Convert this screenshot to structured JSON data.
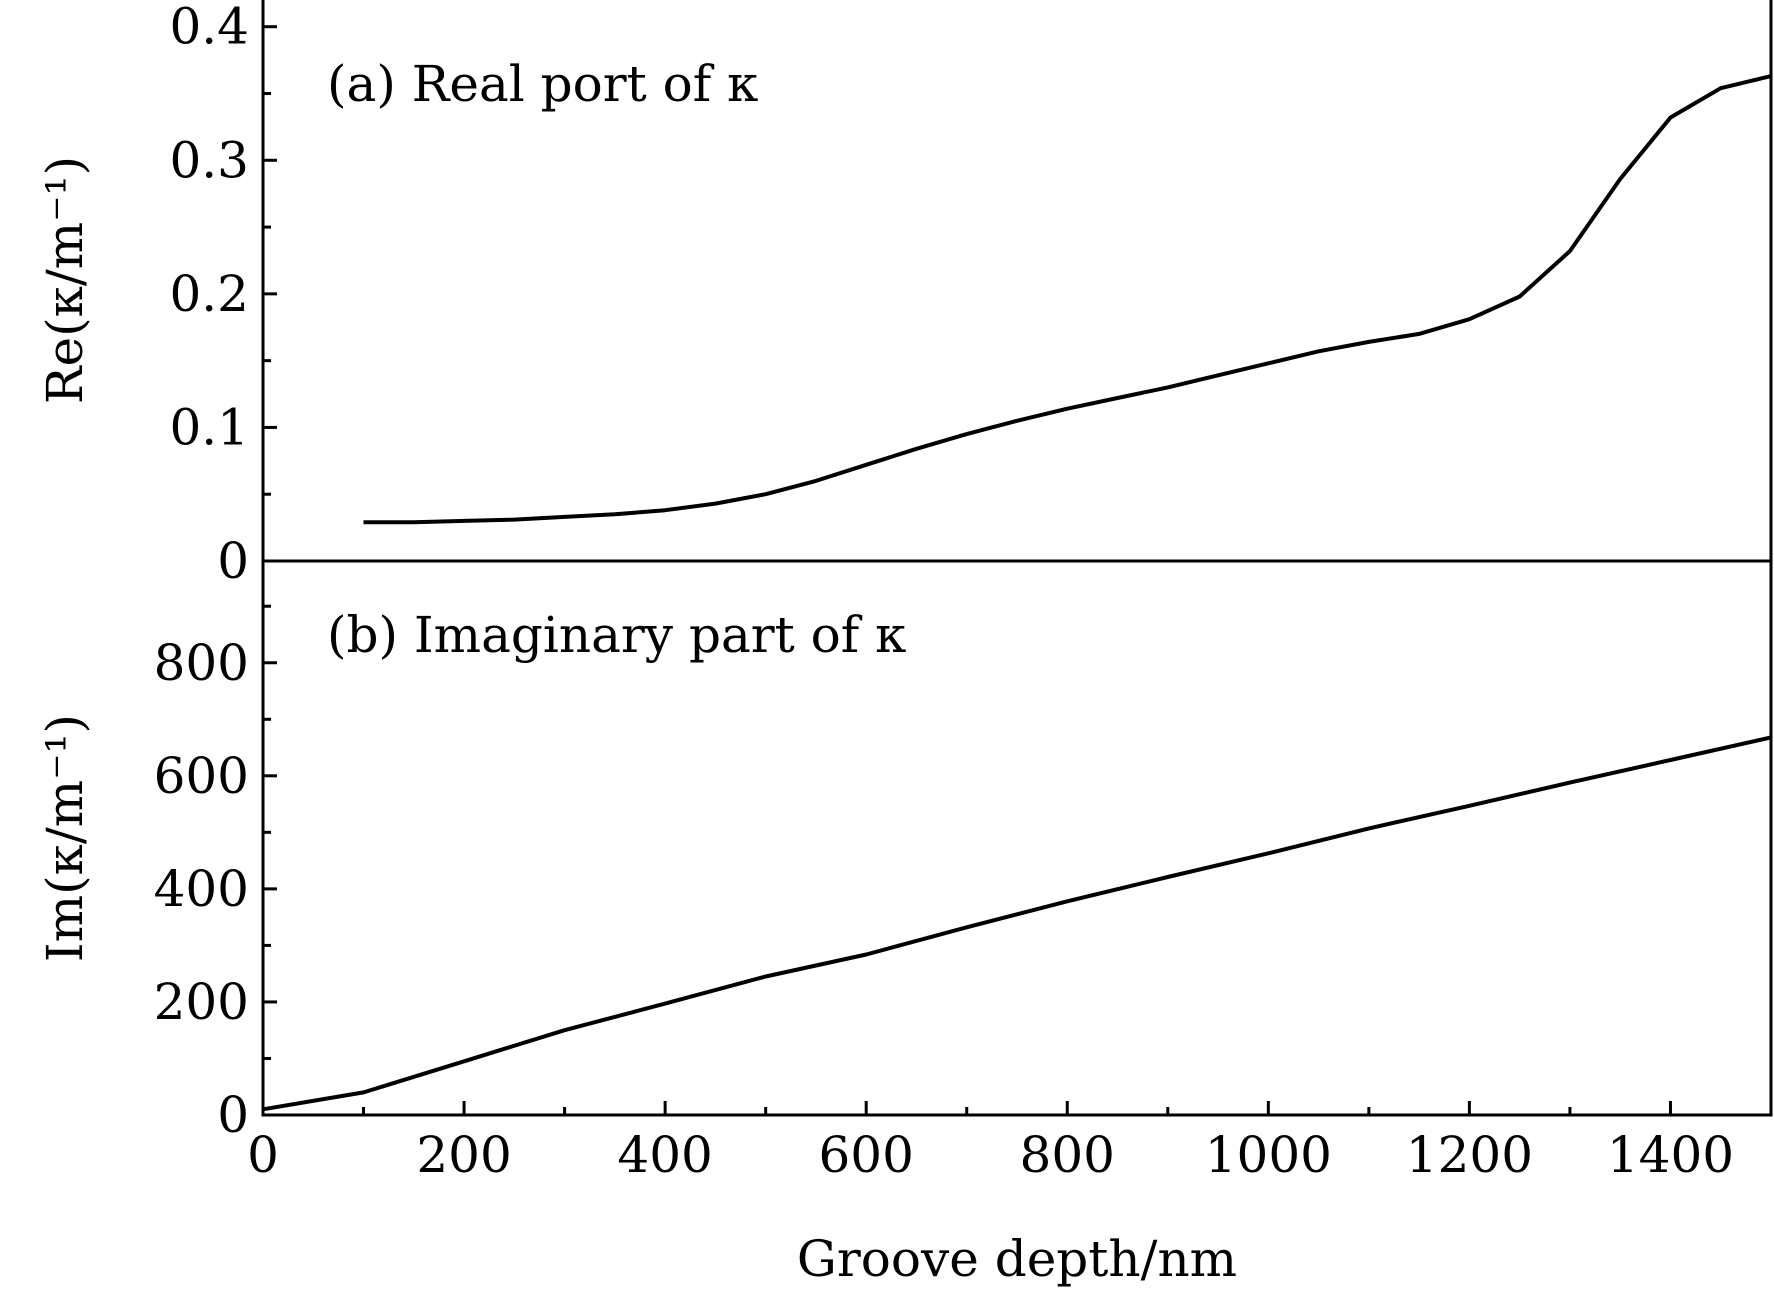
{
  "chart_data": [
    {
      "type": "line",
      "panel_label": "(a) Real port of κ",
      "ylabel": "Re(κ/m⁻¹)",
      "xlabel": "",
      "xlim": [
        0,
        1500
      ],
      "ylim": [
        0,
        0.42
      ],
      "yticks": [
        0,
        0.1,
        0.2,
        0.3,
        0.4
      ],
      "ytick_labels": [
        "0",
        "0.1",
        "0.2",
        "0.3",
        "0.4"
      ],
      "grid": false,
      "series": [
        {
          "x": [
            100,
            150,
            200,
            250,
            300,
            350,
            400,
            450,
            500,
            550,
            600,
            650,
            700,
            750,
            800,
            850,
            900,
            950,
            1000,
            1050,
            1100,
            1150,
            1200,
            1250,
            1300,
            1350,
            1400,
            1450,
            1500
          ],
          "y": [
            0.029,
            0.029,
            0.03,
            0.031,
            0.033,
            0.035,
            0.038,
            0.043,
            0.05,
            0.06,
            0.072,
            0.084,
            0.095,
            0.105,
            0.114,
            0.122,
            0.13,
            0.139,
            0.148,
            0.157,
            0.164,
            0.17,
            0.181,
            0.198,
            0.232,
            0.286,
            0.332,
            0.354,
            0.363
          ]
        }
      ]
    },
    {
      "type": "line",
      "panel_label": "(b) Imaginary part of κ",
      "ylabel": "Im(κ/m⁻¹)",
      "xlabel": "Groove depth/nm",
      "xlim": [
        0,
        1500
      ],
      "ylim": [
        0,
        980
      ],
      "xticks": [
        0,
        200,
        400,
        600,
        800,
        1000,
        1200,
        1400
      ],
      "xtick_labels": [
        "0",
        "200",
        "400",
        "600",
        "800",
        "1000",
        "1200",
        "1400"
      ],
      "yticks": [
        0,
        200,
        400,
        600,
        800
      ],
      "ytick_labels": [
        "0",
        "200",
        "400",
        "600",
        "800"
      ],
      "grid": false,
      "series": [
        {
          "x": [
            0,
            100,
            200,
            300,
            400,
            500,
            600,
            700,
            800,
            900,
            1000,
            1100,
            1200,
            1300,
            1400,
            1500
          ],
          "y": [
            10,
            40,
            95,
            150,
            197,
            245,
            284,
            332,
            378,
            421,
            463,
            507,
            547,
            588,
            628,
            668
          ]
        }
      ]
    }
  ]
}
